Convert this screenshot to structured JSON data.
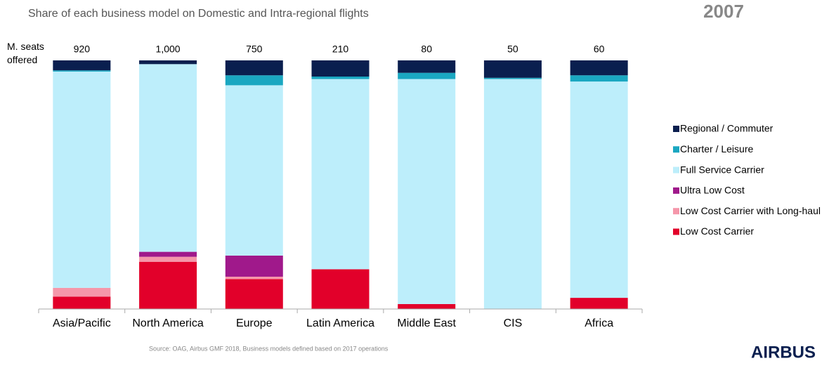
{
  "chart_data": {
    "type": "stacked_bar_percent",
    "title": "Share of each business model on Domestic and Intra-regional flights",
    "year": "2007",
    "totals_title": "M. seats offered",
    "categories": [
      "Asia/Pacific",
      "North America",
      "Europe",
      "Latin America",
      "Middle East",
      "CIS",
      "Africa"
    ],
    "totals": [
      920,
      1000,
      750,
      210,
      80,
      50,
      60
    ],
    "totals_labels": [
      "920",
      "1,000",
      "750",
      "210",
      "80",
      "50",
      "60"
    ],
    "series": [
      {
        "name": "Low Cost Carrier",
        "color": "#e2002a",
        "values": [
          5,
          19,
          12,
          16,
          2,
          0,
          4.5
        ]
      },
      {
        "name": "Low Cost Carrier with Long-haul",
        "color": "#f597aa",
        "values": [
          3.5,
          2,
          1,
          0,
          0,
          0,
          0
        ]
      },
      {
        "name": "Ultra Low Cost",
        "color": "#a0198b",
        "values": [
          0,
          2,
          8.5,
          0,
          0,
          0,
          0
        ]
      },
      {
        "name": "Full Service Carrier",
        "color": "#bdeefb",
        "values": [
          87,
          75.5,
          68.5,
          76.5,
          90.5,
          92.5,
          87
        ]
      },
      {
        "name": "Charter / Leisure",
        "color": "#1aa7c1",
        "values": [
          0.5,
          0,
          4,
          1,
          2.5,
          0.5,
          2.5
        ]
      },
      {
        "name": "Regional / Commuter",
        "color": "#0a1f4f",
        "values": [
          4,
          1.5,
          6,
          6.5,
          5,
          7,
          6
        ]
      }
    ],
    "ylim": [
      0,
      100
    ],
    "legend": "right",
    "source": "Source: OAG, Airbus GMF 2018, Business models defined based on 2017 operations",
    "logo": "AIRBUS"
  }
}
